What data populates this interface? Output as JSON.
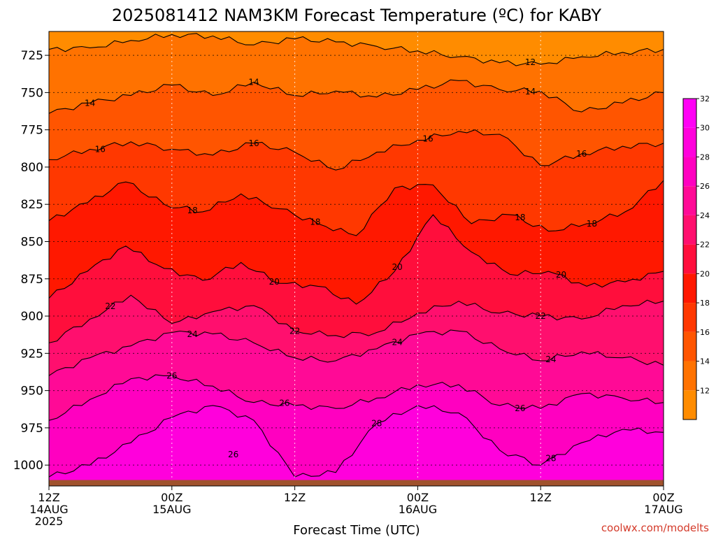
{
  "chart_data": {
    "type": "heatmap",
    "title": "2025081412 NAM3KM Forecast Temperature (ºC) for KABY",
    "xlabel": "Forecast Time (UTC)",
    "ylabel": "",
    "credit": "coolwx.com/modelts",
    "x_ticks": [
      {
        "hours": 0,
        "line1": "12Z",
        "line2": "14AUG",
        "line3": "2025"
      },
      {
        "hours": 12,
        "line1": "00Z",
        "line2": "15AUG",
        "line3": ""
      },
      {
        "hours": 24,
        "line1": "12Z",
        "line2": "",
        "line3": ""
      },
      {
        "hours": 36,
        "line1": "00Z",
        "line2": "16AUG",
        "line3": ""
      },
      {
        "hours": 48,
        "line1": "12Z",
        "line2": "",
        "line3": ""
      },
      {
        "hours": 60,
        "line1": "00Z",
        "line2": "17AUG",
        "line3": ""
      }
    ],
    "xlim": [
      0,
      60
    ],
    "y_ticks": [
      725,
      750,
      775,
      800,
      825,
      850,
      875,
      900,
      925,
      950,
      975,
      1000
    ],
    "ylim": [
      709,
      1014
    ],
    "ground_level_hpa": 1010,
    "grid": true,
    "colorbar": {
      "levels": [
        12,
        14,
        16,
        18,
        20,
        22,
        24,
        26,
        28,
        30,
        32
      ],
      "colors": [
        "#ff8c00",
        "#ff7200",
        "#ff5500",
        "#ff3800",
        "#ff1800",
        "#ff0e3c",
        "#ff0f6e",
        "#ff0a96",
        "#ff00c0",
        "#ff00dc",
        "#ff00f5"
      ]
    },
    "contour_levels": [
      {
        "value": 12,
        "pressure": [
          721,
          720,
          715,
          711,
          712,
          718,
          714,
          716,
          719,
          722,
          726,
          730,
          731,
          726,
          723,
          721
        ],
        "labels": [
          {
            "x": 47
          }
        ]
      },
      {
        "value": 14,
        "pressure": [
          764,
          757,
          752,
          745,
          752,
          743,
          752,
          749,
          753,
          748,
          742,
          748,
          749,
          763,
          757,
          750
        ],
        "labels": [
          {
            "x": 4
          },
          {
            "x": 20
          },
          {
            "x": 47
          }
        ]
      },
      {
        "value": 16,
        "pressure": [
          795,
          788,
          783,
          788,
          792,
          784,
          790,
          802,
          790,
          782,
          776,
          778,
          799,
          791,
          786,
          784
        ],
        "labels": [
          {
            "x": 5
          },
          {
            "x": 20
          },
          {
            "x": 37
          },
          {
            "x": 52
          }
        ]
      },
      {
        "value": 18,
        "pressure": [
          836,
          824,
          810,
          825,
          830,
          818,
          828,
          838,
          846,
          814,
          812,
          838,
          832,
          843,
          838,
          830,
          809
        ],
        "labels": [
          {
            "x": 14
          },
          {
            "x": 26
          },
          {
            "x": 46
          },
          {
            "x": 53
          }
        ]
      },
      {
        "value": 20,
        "pressure": [
          888,
          870,
          853,
          868,
          876,
          864,
          878,
          880,
          892,
          870,
          832,
          857,
          872,
          870,
          880,
          877,
          870
        ],
        "labels": [
          {
            "x": 22
          },
          {
            "x": 34
          },
          {
            "x": 50
          }
        ]
      },
      {
        "value": 22,
        "pressure": [
          918,
          902,
          886,
          905,
          897,
          893,
          910,
          913,
          911,
          898,
          890,
          898,
          900,
          902,
          893,
          890
        ],
        "labels": [
          {
            "x": 6
          },
          {
            "x": 24
          },
          {
            "x": 48
          }
        ]
      },
      {
        "value": 24,
        "pressure": [
          940,
          928,
          920,
          911,
          912,
          918,
          928,
          930,
          922,
          912,
          910,
          922,
          930,
          924,
          928,
          933
        ],
        "labels": [
          {
            "x": 14
          },
          {
            "x": 34
          },
          {
            "x": 49
          }
        ]
      },
      {
        "value": 26,
        "pressure": [
          970,
          956,
          942,
          940,
          947,
          958,
          960,
          962,
          955,
          946,
          946,
          960,
          962,
          952,
          955,
          958
        ],
        "labels": [
          {
            "x": 12
          },
          {
            "x": 23
          },
          {
            "x": 46
          }
        ]
      },
      {
        "value": 28,
        "pressure": [
          1008,
          1000,
          985,
          968,
          960,
          970,
          1008,
          1005,
          972,
          960,
          965,
          990,
          1000,
          985,
          976,
          978
        ],
        "labels": [
          {
            "x": 32
          },
          {
            "x": 49
          }
        ]
      }
    ],
    "extra_labels": [
      {
        "text": "26",
        "x": 18,
        "pressure": 993
      }
    ]
  }
}
